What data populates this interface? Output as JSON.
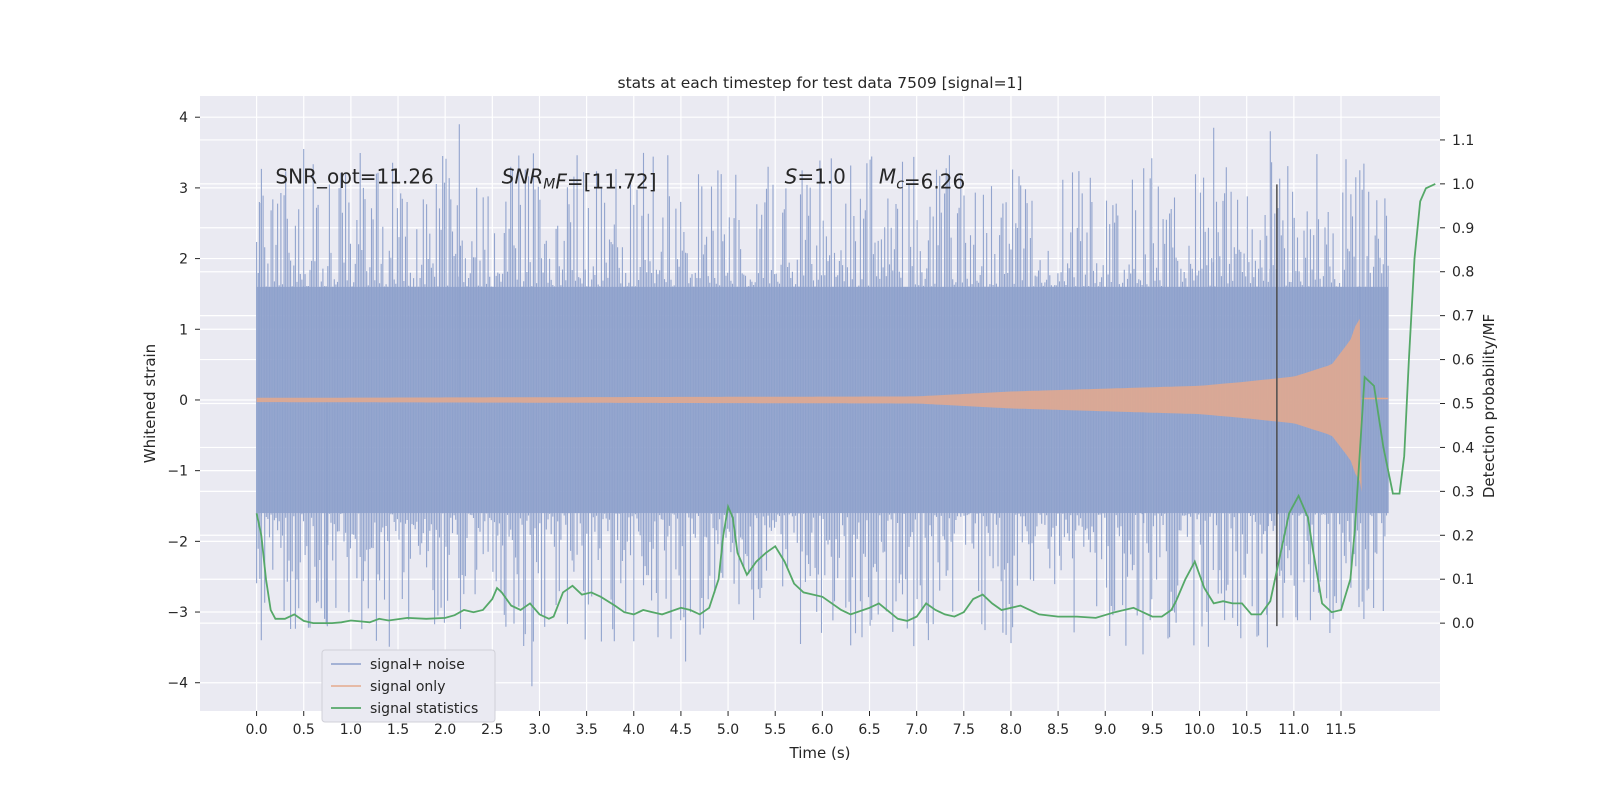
{
  "chart_data": {
    "type": "line",
    "title": "stats at each timestep for test data 7509 [signal=1]",
    "xlabel": "Time (s)",
    "ylabel": "Whitened strain",
    "y2label": "Detection probability/MF",
    "xlim": [
      -0.6,
      12.55
    ],
    "ylim": [
      -4.4,
      4.3
    ],
    "y2lim": [
      -0.2,
      1.2
    ],
    "x_ticks": [
      0.0,
      0.5,
      1.0,
      1.5,
      2.0,
      2.5,
      3.0,
      3.5,
      4.0,
      4.5,
      5.0,
      5.5,
      6.0,
      6.5,
      7.0,
      7.5,
      8.0,
      8.5,
      9.0,
      9.5,
      10.0,
      10.5,
      11.0,
      11.5
    ],
    "x_tick_labels": [
      "0.0",
      "0.5",
      "1.0",
      "1.5",
      "2.0",
      "2.5",
      "3.0",
      "3.5",
      "4.0",
      "4.5",
      "5.0",
      "5.5",
      "6.0",
      "6.5",
      "7.0",
      "7.5",
      "8.0",
      "8.5",
      "9.0",
      "9.5",
      "10.0",
      "10.5",
      "11.0",
      "11.5"
    ],
    "y_ticks": [
      -4,
      -3,
      -2,
      -1,
      0,
      1,
      2,
      3,
      4
    ],
    "y_tick_labels": [
      "−4",
      "−3",
      "−2",
      "−1",
      "0",
      "1",
      "2",
      "3",
      "4"
    ],
    "y2_ticks": [
      0.0,
      0.1,
      0.2,
      0.3,
      0.4,
      0.5,
      0.6,
      0.7,
      0.8,
      0.9,
      1.0,
      1.1
    ],
    "y2_tick_labels": [
      "0.0",
      "0.1",
      "0.2",
      "0.3",
      "0.4",
      "0.5",
      "0.6",
      "0.7",
      "0.8",
      "0.9",
      "1.0",
      "1.1"
    ],
    "grid": true,
    "legend_position": "lower-left",
    "annotations": [
      {
        "parts": [
          {
            "t": "SNR_opt=11.26",
            "i": false
          }
        ]
      },
      {
        "parts": [
          {
            "t": "SNR",
            "i": true
          },
          {
            "t": "M",
            "i": true,
            "sub": true
          },
          {
            "t": "F",
            "i": true
          },
          {
            "t": "=[11.72]",
            "i": false
          }
        ]
      },
      {
        "parts": [
          {
            "t": "S",
            "i": true
          },
          {
            "t": "=1.0",
            "i": false
          }
        ]
      },
      {
        "parts": [
          {
            "t": "M",
            "i": true
          },
          {
            "t": "c",
            "i": true,
            "sub": true
          },
          {
            "t": "=6.26",
            "i": false
          }
        ]
      }
    ],
    "series": [
      {
        "name": "signal+ noise",
        "color": "#8da0cb",
        "axis": "left",
        "style": "dense-noise",
        "x_range": [
          0.0,
          12.0
        ],
        "typical_envelope": [
          -1.6,
          1.6
        ],
        "approx_peak_values": [
          {
            "x": 0.03,
            "y": 2.8
          },
          {
            "x": 0.05,
            "y": -3.4
          },
          {
            "x": 0.5,
            "y": 3.55
          },
          {
            "x": 0.75,
            "y": -3.2
          },
          {
            "x": 2.15,
            "y": 3.9
          },
          {
            "x": 2.92,
            "y": -4.05
          },
          {
            "x": 4.55,
            "y": -3.7
          },
          {
            "x": 9.4,
            "y": -3.6
          },
          {
            "x": 10.15,
            "y": 3.85
          },
          {
            "x": 10.75,
            "y": 3.8
          },
          {
            "x": 10.72,
            "y": -3.5
          },
          {
            "x": 11.7,
            "y": 3.25
          }
        ]
      },
      {
        "name": "signal only",
        "color": "#e5a98c",
        "axis": "left",
        "style": "chirp",
        "x_range": [
          0.0,
          12.0
        ],
        "merger_time": 11.7,
        "amplitude_points": [
          {
            "x": 0.0,
            "y": 0.03
          },
          {
            "x": 7.0,
            "y": 0.05
          },
          {
            "x": 8.0,
            "y": 0.12
          },
          {
            "x": 9.0,
            "y": 0.16
          },
          {
            "x": 10.0,
            "y": 0.2
          },
          {
            "x": 10.5,
            "y": 0.26
          },
          {
            "x": 11.0,
            "y": 0.33
          },
          {
            "x": 11.4,
            "y": 0.5
          },
          {
            "x": 11.6,
            "y": 0.85
          },
          {
            "x": 11.68,
            "y": 1.15
          }
        ]
      },
      {
        "name": "signal statistics",
        "color": "#55a868",
        "axis": "right",
        "style": "line",
        "points": [
          [
            0.0,
            0.25
          ],
          [
            0.05,
            0.2
          ],
          [
            0.1,
            0.1
          ],
          [
            0.15,
            0.03
          ],
          [
            0.2,
            0.01
          ],
          [
            0.3,
            0.01
          ],
          [
            0.4,
            0.02
          ],
          [
            0.5,
            0.005
          ],
          [
            0.6,
            0.0
          ],
          [
            0.8,
            0.0
          ],
          [
            0.9,
            0.002
          ],
          [
            1.0,
            0.006
          ],
          [
            1.1,
            0.004
          ],
          [
            1.2,
            0.002
          ],
          [
            1.3,
            0.01
          ],
          [
            1.4,
            0.006
          ],
          [
            1.6,
            0.012
          ],
          [
            1.8,
            0.01
          ],
          [
            2.0,
            0.012
          ],
          [
            2.1,
            0.018
          ],
          [
            2.2,
            0.03
          ],
          [
            2.3,
            0.025
          ],
          [
            2.4,
            0.03
          ],
          [
            2.5,
            0.055
          ],
          [
            2.55,
            0.08
          ],
          [
            2.6,
            0.07
          ],
          [
            2.7,
            0.04
          ],
          [
            2.8,
            0.03
          ],
          [
            2.9,
            0.045
          ],
          [
            3.0,
            0.02
          ],
          [
            3.1,
            0.01
          ],
          [
            3.15,
            0.015
          ],
          [
            3.25,
            0.07
          ],
          [
            3.35,
            0.085
          ],
          [
            3.45,
            0.065
          ],
          [
            3.55,
            0.07
          ],
          [
            3.65,
            0.06
          ],
          [
            3.8,
            0.04
          ],
          [
            3.9,
            0.025
          ],
          [
            4.0,
            0.02
          ],
          [
            4.1,
            0.03
          ],
          [
            4.2,
            0.025
          ],
          [
            4.3,
            0.02
          ],
          [
            4.5,
            0.035
          ],
          [
            4.6,
            0.03
          ],
          [
            4.7,
            0.02
          ],
          [
            4.8,
            0.035
          ],
          [
            4.9,
            0.1
          ],
          [
            4.95,
            0.2
          ],
          [
            5.0,
            0.265
          ],
          [
            5.05,
            0.24
          ],
          [
            5.1,
            0.16
          ],
          [
            5.2,
            0.11
          ],
          [
            5.3,
            0.14
          ],
          [
            5.4,
            0.16
          ],
          [
            5.5,
            0.175
          ],
          [
            5.6,
            0.14
          ],
          [
            5.7,
            0.09
          ],
          [
            5.8,
            0.07
          ],
          [
            6.0,
            0.06
          ],
          [
            6.2,
            0.03
          ],
          [
            6.3,
            0.02
          ],
          [
            6.5,
            0.035
          ],
          [
            6.6,
            0.045
          ],
          [
            6.8,
            0.01
          ],
          [
            6.9,
            0.005
          ],
          [
            7.0,
            0.015
          ],
          [
            7.1,
            0.045
          ],
          [
            7.2,
            0.03
          ],
          [
            7.3,
            0.02
          ],
          [
            7.4,
            0.015
          ],
          [
            7.5,
            0.025
          ],
          [
            7.6,
            0.055
          ],
          [
            7.7,
            0.065
          ],
          [
            7.8,
            0.045
          ],
          [
            7.9,
            0.03
          ],
          [
            8.1,
            0.04
          ],
          [
            8.3,
            0.02
          ],
          [
            8.5,
            0.015
          ],
          [
            8.7,
            0.015
          ],
          [
            8.9,
            0.012
          ],
          [
            9.1,
            0.025
          ],
          [
            9.3,
            0.035
          ],
          [
            9.5,
            0.015
          ],
          [
            9.6,
            0.015
          ],
          [
            9.7,
            0.03
          ],
          [
            9.75,
            0.05
          ],
          [
            9.85,
            0.1
          ],
          [
            9.95,
            0.14
          ],
          [
            10.05,
            0.08
          ],
          [
            10.15,
            0.045
          ],
          [
            10.25,
            0.05
          ],
          [
            10.35,
            0.045
          ],
          [
            10.45,
            0.045
          ],
          [
            10.55,
            0.02
          ],
          [
            10.65,
            0.02
          ],
          [
            10.75,
            0.05
          ],
          [
            10.85,
            0.15
          ],
          [
            10.95,
            0.25
          ],
          [
            11.05,
            0.29
          ],
          [
            11.15,
            0.24
          ],
          [
            11.2,
            0.17
          ],
          [
            11.3,
            0.045
          ],
          [
            11.4,
            0.025
          ],
          [
            11.5,
            0.03
          ],
          [
            11.6,
            0.1
          ],
          [
            11.65,
            0.22
          ],
          [
            11.75,
            0.56
          ],
          [
            11.85,
            0.54
          ],
          [
            11.95,
            0.4
          ],
          [
            12.05,
            0.295
          ],
          [
            12.12,
            0.295
          ],
          [
            12.17,
            0.38
          ],
          [
            12.22,
            0.6
          ],
          [
            12.28,
            0.83
          ],
          [
            12.34,
            0.96
          ],
          [
            12.4,
            0.99
          ],
          [
            12.5,
            1.0
          ]
        ]
      }
    ],
    "vertical_marker": {
      "x": 10.82,
      "y_range": [
        -3.2,
        3.05
      ],
      "color": "#4d4d4d"
    }
  }
}
